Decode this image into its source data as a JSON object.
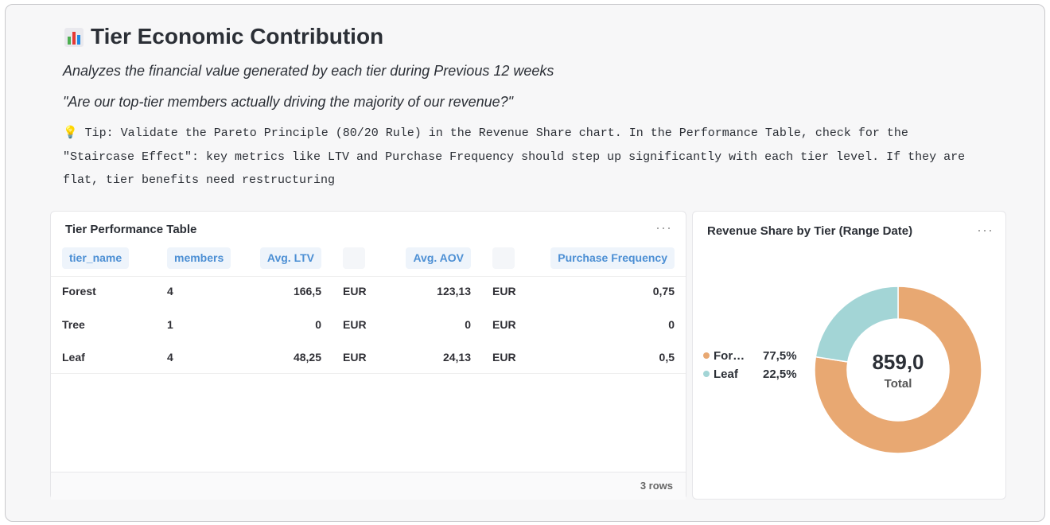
{
  "header": {
    "title": "Tier Economic Contribution",
    "subtitle": "Analyzes the financial value generated by each tier during Previous 12 weeks",
    "question": "\"Are our top-tier members actually driving the majority of our revenue?\"",
    "tip": "💡 Tip: Validate the Pareto Principle (80/20 Rule) in the Revenue Share chart. In the Performance Table, check for the \"Staircase Effect\": key metrics like LTV and Purchase Frequency should step up significantly with each tier level. If they are flat, tier benefits need restructuring"
  },
  "table": {
    "title": "Tier Performance Table",
    "columns": [
      "tier_name",
      "members",
      "Avg. LTV",
      "Avg. AOV",
      "Purchase Frequency"
    ],
    "rows": [
      [
        "Forest",
        "4",
        "166,5",
        "EUR",
        "123,13",
        "EUR",
        "0,75"
      ],
      [
        "Tree",
        "1",
        "0",
        "EUR",
        "0",
        "EUR",
        "0"
      ],
      [
        "Leaf",
        "4",
        "48,25",
        "EUR",
        "24,13",
        "EUR",
        "0,5"
      ]
    ],
    "footer": "3 rows"
  },
  "chart_data": {
    "type": "pie",
    "title": "Revenue Share by Tier (Range Date)",
    "categories": [
      "For…",
      "Leaf"
    ],
    "values": [
      77.5,
      22.5
    ],
    "value_labels": [
      "77,5%",
      "22,5%"
    ],
    "colors": [
      "#e8a872",
      "#a3d5d6"
    ],
    "center_label": "859,0",
    "center_caption": "Total"
  }
}
